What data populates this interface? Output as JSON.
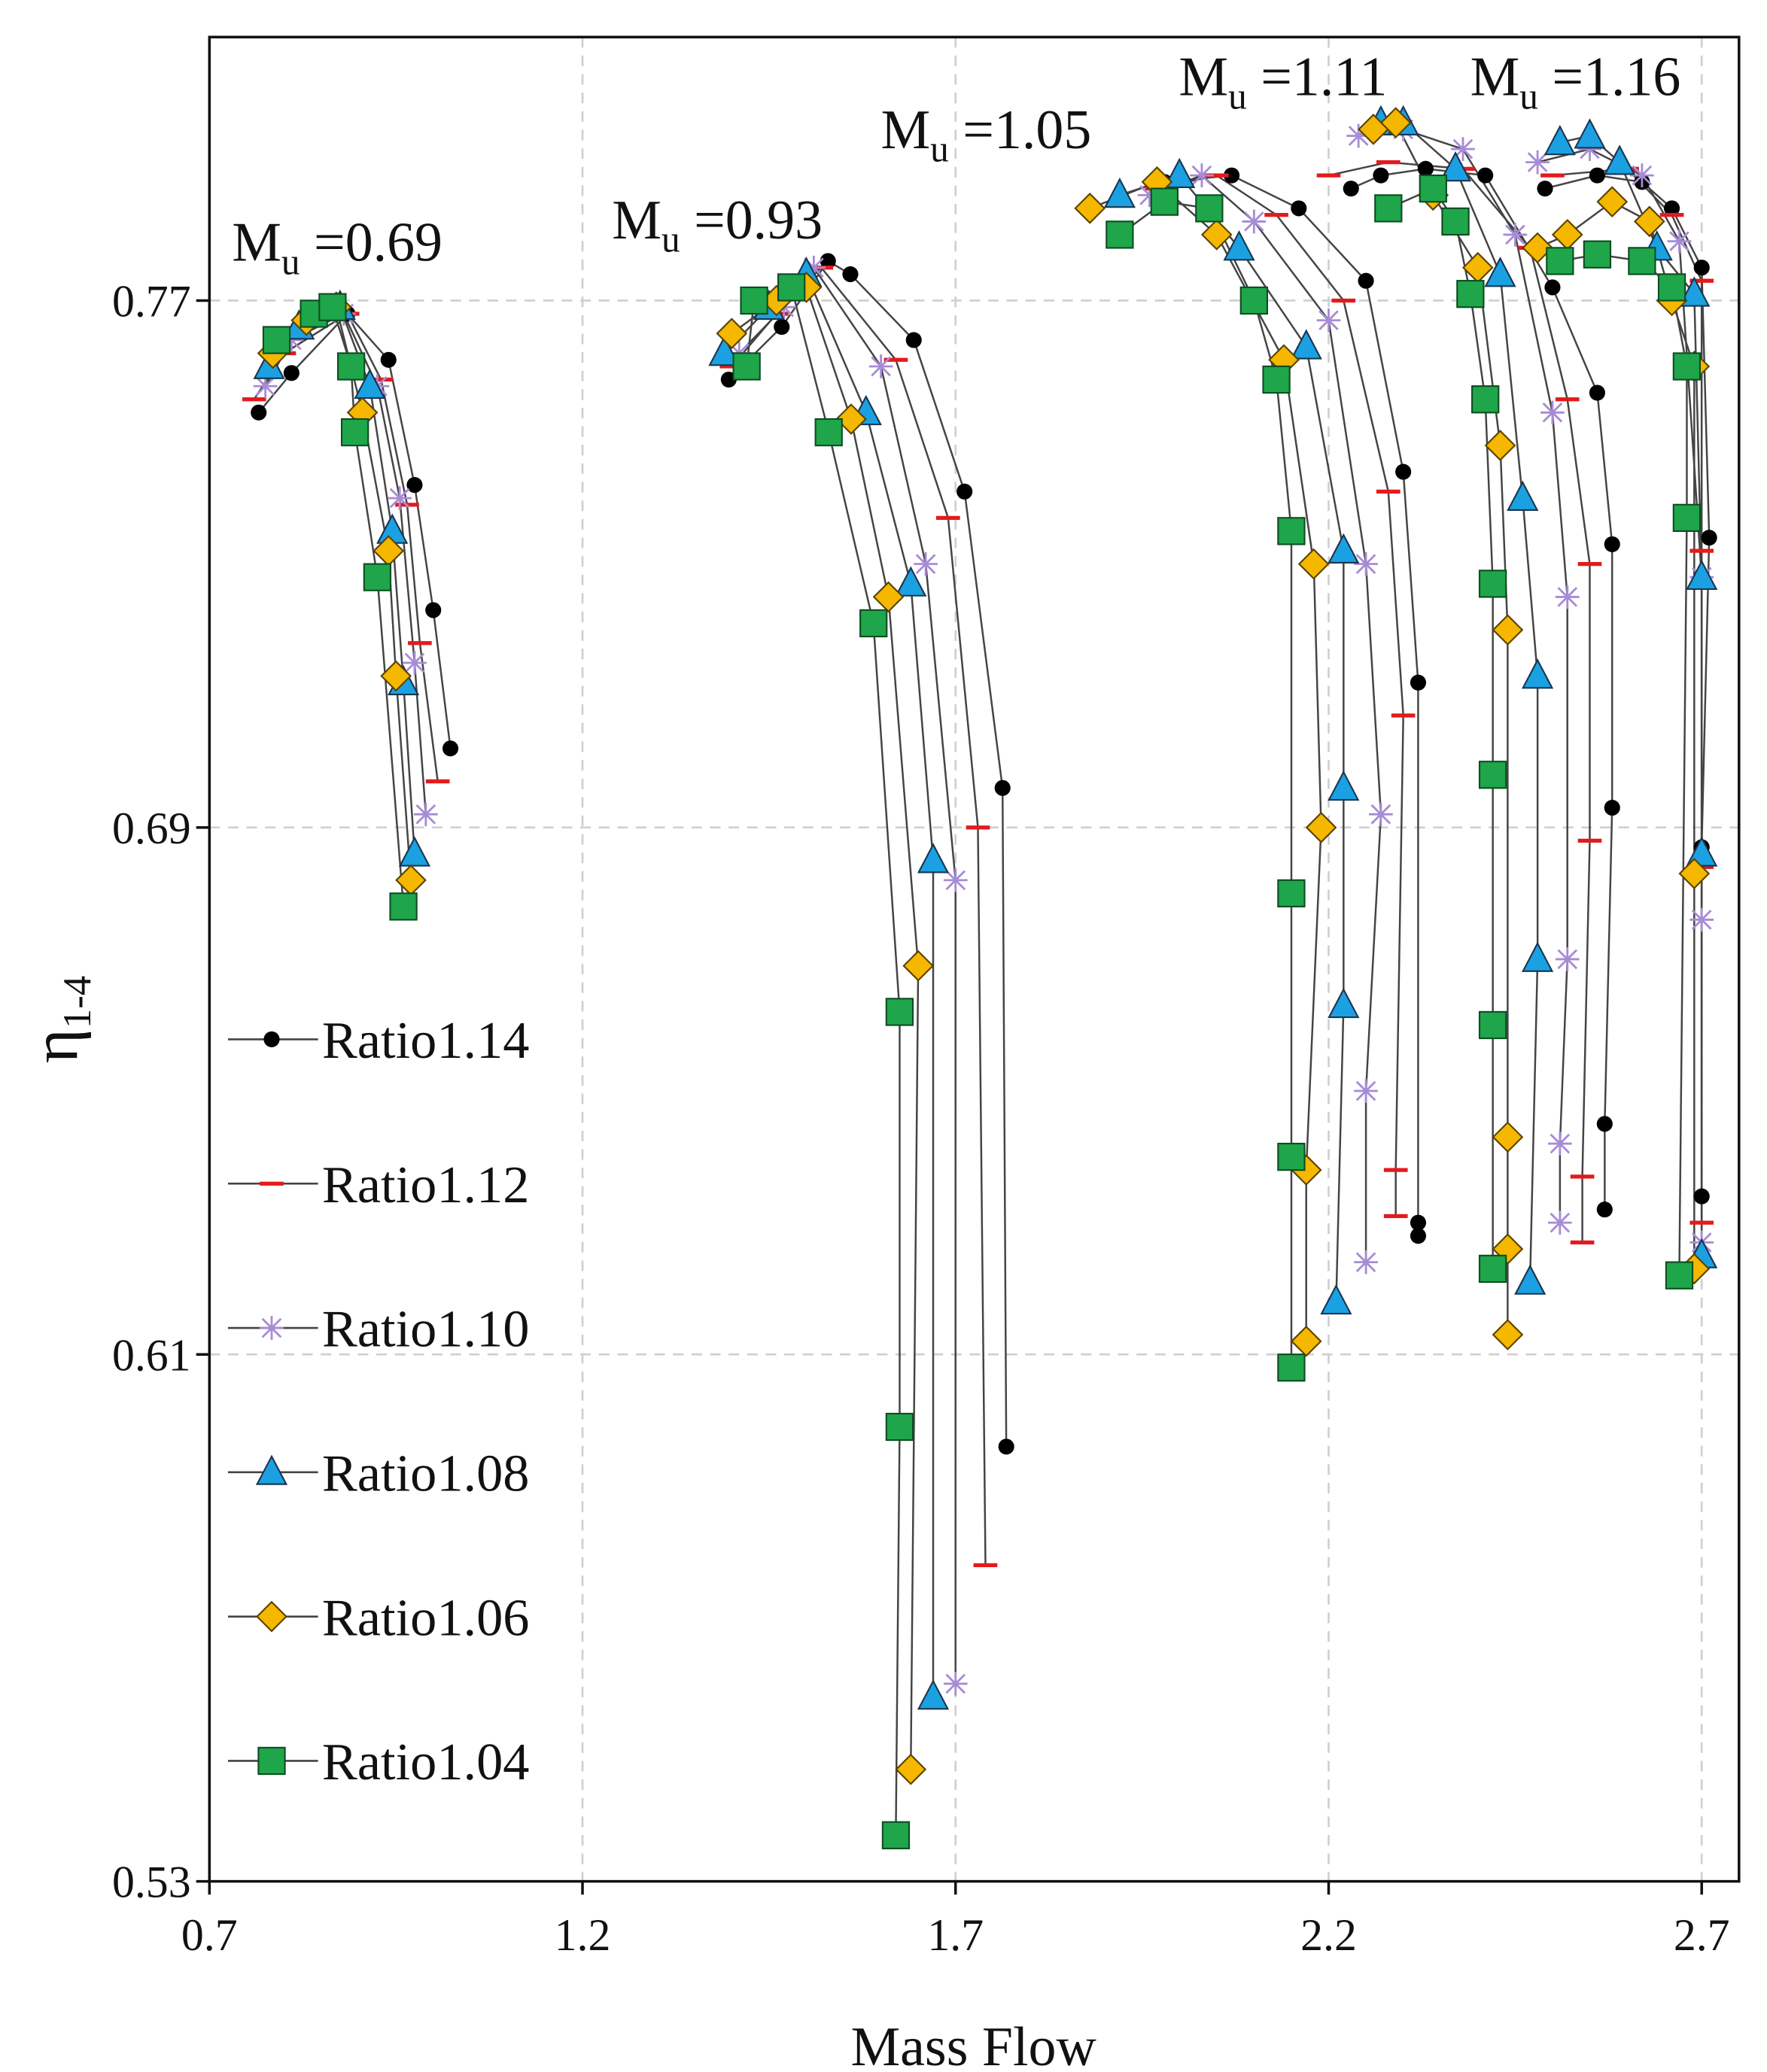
{
  "chart_data": {
    "type": "scatter",
    "x_label": "Mass Flow",
    "y_label": {
      "base": "η",
      "sub": "1-4"
    },
    "xlim": [
      0.7,
      2.75
    ],
    "ylim": [
      0.53,
      0.81
    ],
    "xticks": [
      0.7,
      1.2,
      1.7,
      2.2,
      2.7
    ],
    "yticks": [
      0.53,
      0.61,
      0.69,
      0.77
    ],
    "grid": true,
    "legend": "left",
    "line_color": "#444444",
    "annotations": [
      {
        "base": "M",
        "sub": "u",
        "text": " =0.69"
      },
      {
        "base": "M",
        "sub": "u",
        "text": " =0.93"
      },
      {
        "base": "M",
        "sub": "u",
        "text": " =1.05"
      },
      {
        "base": "M",
        "sub": "u",
        "text": " =1.11"
      },
      {
        "base": "M",
        "sub": "u",
        "text": " =1.16"
      }
    ],
    "series": [
      {
        "name": "Ratio1.14",
        "color": "#000000",
        "marker": "circle",
        "x": [
          0.766,
          0.81,
          0.885,
          0.94,
          0.975,
          1.0,
          1.023,
          null,
          1.396,
          1.467,
          1.529,
          1.559,
          1.644,
          1.712,
          1.763,
          1.768,
          null,
          1.98,
          2.07,
          2.16,
          2.25,
          2.3,
          2.32,
          2.32,
          2.32,
          null,
          2.23,
          2.27,
          2.33,
          2.41,
          2.5,
          2.56,
          2.58,
          2.58,
          2.57,
          2.57,
          null,
          2.49,
          2.56,
          2.62,
          2.66,
          2.7,
          2.71,
          2.7,
          2.7
        ],
        "values": [
          0.753,
          0.759,
          0.768,
          0.761,
          0.742,
          0.723,
          0.702,
          null,
          0.758,
          0.766,
          0.776,
          0.774,
          0.764,
          0.741,
          0.696,
          0.596,
          null,
          0.788,
          0.789,
          0.784,
          0.773,
          0.744,
          0.712,
          0.63,
          0.628,
          null,
          0.787,
          0.789,
          0.79,
          0.789,
          0.772,
          0.756,
          0.733,
          0.693,
          0.645,
          0.632,
          null,
          0.787,
          0.789,
          0.788,
          0.784,
          0.775,
          0.734,
          0.687,
          0.634
        ]
      },
      {
        "name": "Ratio1.12",
        "color": "#e41a1c",
        "marker": "dash",
        "x": [
          0.76,
          0.8,
          0.885,
          0.93,
          0.965,
          0.982,
          1.006,
          null,
          1.4,
          1.46,
          1.52,
          1.62,
          1.69,
          1.73,
          1.74,
          null,
          1.97,
          2.05,
          2.13,
          2.22,
          2.28,
          2.3,
          2.29,
          2.29,
          null,
          2.2,
          2.28,
          2.38,
          2.47,
          2.52,
          2.55,
          2.55,
          2.54,
          2.54,
          null,
          2.5,
          2.6,
          2.66,
          2.7,
          2.7,
          2.7,
          2.7
        ],
        "values": [
          0.755,
          0.762,
          0.768,
          0.758,
          0.739,
          0.718,
          0.697,
          null,
          0.76,
          0.768,
          0.775,
          0.761,
          0.737,
          0.69,
          0.578,
          null,
          0.787,
          0.789,
          0.783,
          0.77,
          0.741,
          0.707,
          0.638,
          0.631,
          null,
          0.789,
          0.791,
          0.79,
          0.778,
          0.755,
          0.73,
          0.688,
          0.637,
          0.627,
          null,
          0.789,
          0.79,
          0.783,
          0.773,
          0.732,
          0.684,
          0.63
        ]
      },
      {
        "name": "Ratio1.10",
        "color": "#a78bd6",
        "marker": "star",
        "x": [
          0.775,
          0.81,
          0.88,
          0.925,
          0.955,
          0.975,
          0.99,
          null,
          1.41,
          1.47,
          1.51,
          1.6,
          1.66,
          1.7,
          1.7,
          null,
          1.96,
          2.03,
          2.1,
          2.2,
          2.25,
          2.27,
          2.25,
          2.25,
          null,
          2.24,
          2.3,
          2.38,
          2.45,
          2.5,
          2.52,
          2.52,
          2.51,
          2.51,
          null,
          2.48,
          2.55,
          2.62,
          2.67,
          2.7,
          2.7,
          2.7
        ],
        "values": [
          0.757,
          0.764,
          0.768,
          0.757,
          0.74,
          0.715,
          0.692,
          null,
          0.762,
          0.769,
          0.775,
          0.76,
          0.73,
          0.682,
          0.56,
          null,
          0.786,
          0.789,
          0.782,
          0.767,
          0.73,
          0.692,
          0.65,
          0.624,
          null,
          0.795,
          0.796,
          0.793,
          0.78,
          0.753,
          0.725,
          0.67,
          0.642,
          0.63,
          null,
          0.791,
          0.793,
          0.789,
          0.779,
          0.728,
          0.676,
          0.627
        ]
      },
      {
        "name": "Ratio1.08",
        "color": "#1ba1e2",
        "marker": "triangle",
        "x": [
          0.78,
          0.82,
          0.875,
          0.915,
          0.945,
          0.96,
          0.975,
          null,
          1.39,
          1.45,
          1.5,
          1.58,
          1.64,
          1.67,
          1.67,
          null,
          1.92,
          2.0,
          2.08,
          2.17,
          2.22,
          2.22,
          2.22,
          2.21,
          null,
          2.27,
          2.3,
          2.37,
          2.43,
          2.46,
          2.48,
          2.48,
          2.47,
          null,
          2.51,
          2.55,
          2.59,
          2.64,
          2.69,
          2.7,
          2.7,
          2.7
        ],
        "values": [
          0.76,
          0.766,
          0.769,
          0.757,
          0.735,
          0.712,
          0.686,
          null,
          0.762,
          0.769,
          0.774,
          0.753,
          0.727,
          0.685,
          0.558,
          null,
          0.786,
          0.789,
          0.778,
          0.763,
          0.732,
          0.696,
          0.663,
          0.618,
          null,
          0.797,
          0.797,
          0.79,
          0.774,
          0.74,
          0.713,
          0.67,
          0.621,
          null,
          0.794,
          0.795,
          0.791,
          0.778,
          0.771,
          0.728,
          0.686,
          0.625
        ]
      },
      {
        "name": "Ratio1.06",
        "color": "#f5b700",
        "marker": "diamond",
        "x": [
          0.785,
          0.83,
          0.87,
          0.905,
          0.94,
          0.95,
          0.97,
          null,
          1.4,
          1.46,
          1.5,
          1.56,
          1.61,
          1.65,
          1.64,
          null,
          1.88,
          1.97,
          2.05,
          2.14,
          2.18,
          2.19,
          2.17,
          2.17,
          null,
          2.26,
          2.29,
          2.34,
          2.4,
          2.43,
          2.44,
          2.44,
          2.44,
          2.44,
          null,
          2.48,
          2.52,
          2.58,
          2.63,
          2.66,
          2.69,
          2.69,
          2.69
        ],
        "values": [
          0.762,
          0.767,
          0.769,
          0.753,
          0.732,
          0.713,
          0.682,
          null,
          0.765,
          0.77,
          0.772,
          0.752,
          0.725,
          0.669,
          0.547,
          null,
          0.784,
          0.788,
          0.78,
          0.761,
          0.73,
          0.69,
          0.638,
          0.612,
          null,
          0.796,
          0.797,
          0.786,
          0.775,
          0.748,
          0.72,
          0.643,
          0.626,
          0.613,
          null,
          0.778,
          0.78,
          0.785,
          0.782,
          0.77,
          0.76,
          0.683,
          0.623
        ]
      },
      {
        "name": "Ratio1.04",
        "color": "#1fa64a",
        "marker": "square",
        "x": [
          0.79,
          0.84,
          0.865,
          0.89,
          0.895,
          0.925,
          0.96,
          null,
          1.42,
          1.43,
          1.48,
          1.53,
          1.59,
          1.625,
          1.625,
          1.62,
          null,
          1.92,
          1.98,
          2.04,
          2.1,
          2.13,
          2.15,
          2.15,
          2.15,
          2.15,
          null,
          2.28,
          2.34,
          2.37,
          2.39,
          2.41,
          2.42,
          2.42,
          2.42,
          2.42,
          null,
          2.51,
          2.56,
          2.62,
          2.66,
          2.68,
          2.68,
          2.67
        ],
        "values": [
          0.764,
          0.768,
          0.769,
          0.76,
          0.75,
          0.728,
          0.678,
          null,
          0.76,
          0.77,
          0.772,
          0.75,
          0.721,
          0.662,
          0.599,
          0.537,
          null,
          0.78,
          0.785,
          0.784,
          0.77,
          0.758,
          0.735,
          0.68,
          0.64,
          0.608,
          null,
          0.784,
          0.787,
          0.782,
          0.771,
          0.755,
          0.727,
          0.698,
          0.66,
          0.623,
          null,
          0.776,
          0.777,
          0.776,
          0.772,
          0.76,
          0.737,
          0.622
        ]
      }
    ]
  }
}
